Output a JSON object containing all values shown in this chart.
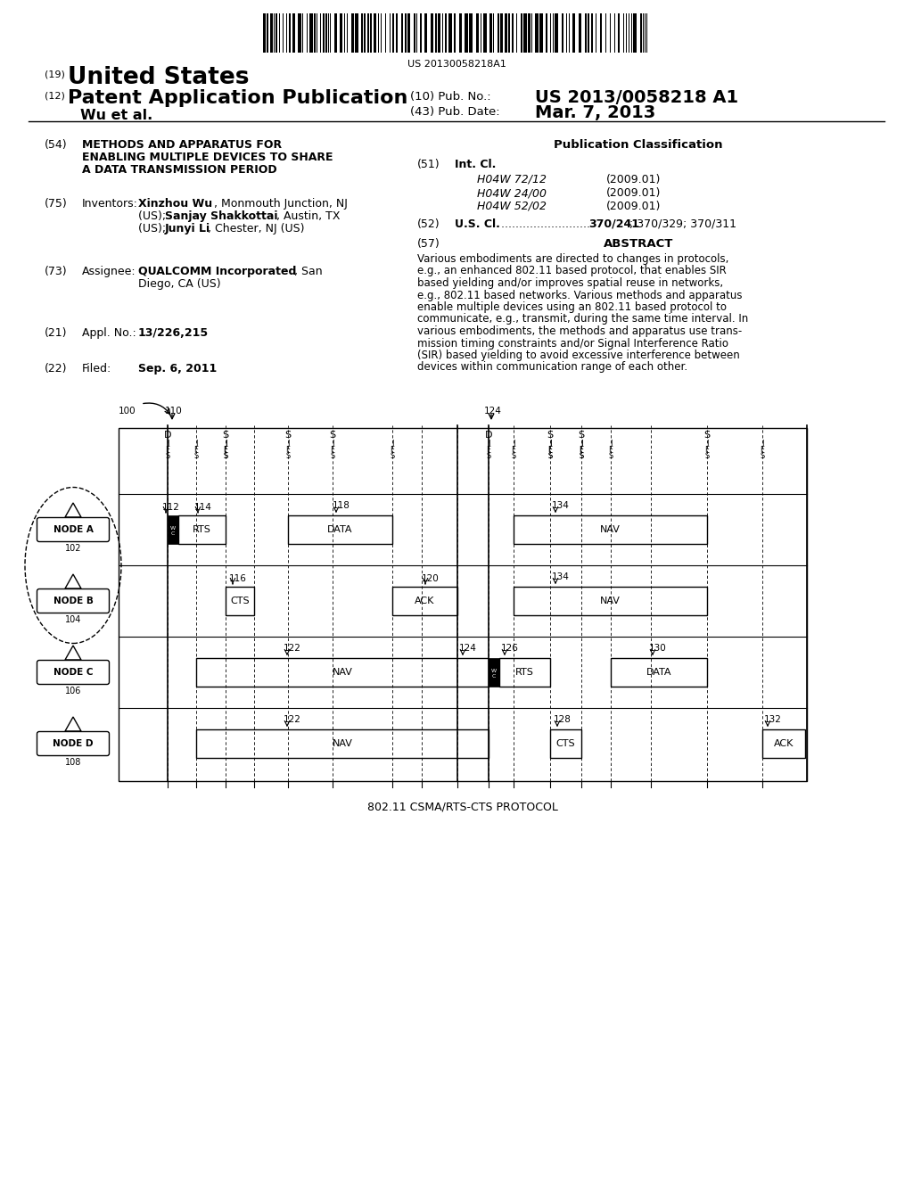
{
  "bg_color": "#ffffff",
  "barcode_text": "US 20130058218A1",
  "patent_number": "US 2013/0058218 A1",
  "pub_date": "Mar. 7, 2013",
  "title_number": "(19)",
  "title_country": "United States",
  "app_type_number": "(12)",
  "app_type": "Patent Application Publication",
  "pub_no_label": "(10) Pub. No.:",
  "pub_date_label": "(43) Pub. Date:",
  "authors": "Wu et al.",
  "pub_class_title": "Publication Classification",
  "ipc1": "H04W 72/12",
  "ipc1_date": "(2009.01)",
  "ipc2": "H04W 24/00",
  "ipc2_date": "(2009.01)",
  "ipc3": "H04W 52/02",
  "ipc3_date": "(2009.01)",
  "abstract_lines": [
    "Various embodiments are directed to changes in protocols,",
    "e.g., an enhanced 802.11 based protocol, that enables SIR",
    "based yielding and/or improves spatial reuse in networks,",
    "e.g., 802.11 based networks. Various methods and apparatus",
    "enable multiple devices using an 802.11 based protocol to",
    "communicate, e.g., transmit, during the same time interval. In",
    "various embodiments, the methods and apparatus use trans-",
    "mission timing constraints and/or Signal Interference Ratio",
    "(SIR) based yielding to avoid excessive interference between",
    "devices within communication range of each other."
  ],
  "diagram_caption": "802.11 CSMA/RTS-CTS PROTOCOL",
  "node_labels": [
    "NODE A",
    "NODE B",
    "NODE C",
    "NODE D"
  ],
  "node_numbers": [
    "102",
    "104",
    "106",
    "108"
  ],
  "line_color": "#000000",
  "dashed_color": "#000000"
}
